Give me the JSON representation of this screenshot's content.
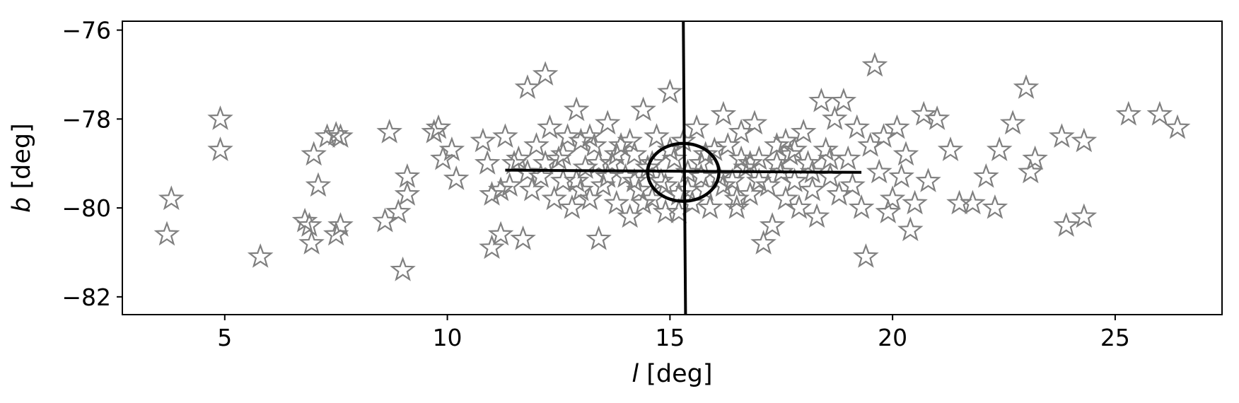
{
  "chart_data": {
    "type": "scatter",
    "title": "",
    "xlabel_symbol": "l",
    "xlabel_unit": " [deg]",
    "ylabel_symbol": "b",
    "ylabel_unit": " [deg]",
    "xlim": [
      2.7,
      27.4
    ],
    "ylim": [
      -82.4,
      -75.8
    ],
    "xticks": [
      5,
      10,
      15,
      20,
      25
    ],
    "yticks": [
      -76,
      -78,
      -80,
      -82
    ],
    "grid": false,
    "legend": "none",
    "marker": "star-outline",
    "marker_color": "#808080",
    "overlay_color": "#000000",
    "points": [
      [
        3.7,
        -80.6
      ],
      [
        3.8,
        -79.8
      ],
      [
        4.9,
        -78.0
      ],
      [
        4.9,
        -78.7
      ],
      [
        5.8,
        -81.1
      ],
      [
        6.8,
        -80.3
      ],
      [
        6.9,
        -80.4
      ],
      [
        6.95,
        -80.8
      ],
      [
        7.0,
        -78.8
      ],
      [
        7.1,
        -79.5
      ],
      [
        7.3,
        -78.4
      ],
      [
        7.5,
        -78.35
      ],
      [
        7.5,
        -80.6
      ],
      [
        7.6,
        -80.4
      ],
      [
        7.6,
        -78.4
      ],
      [
        8.6,
        -80.3
      ],
      [
        8.7,
        -78.3
      ],
      [
        8.9,
        -80.1
      ],
      [
        9.0,
        -81.4
      ],
      [
        9.1,
        -79.3
      ],
      [
        9.1,
        -79.7
      ],
      [
        9.7,
        -78.3
      ],
      [
        9.8,
        -78.2
      ],
      [
        9.9,
        -78.9
      ],
      [
        10.1,
        -78.7
      ],
      [
        10.2,
        -79.35
      ],
      [
        10.8,
        -78.5
      ],
      [
        10.9,
        -79.0
      ],
      [
        11.0,
        -79.7
      ],
      [
        11.0,
        -80.9
      ],
      [
        11.2,
        -79.6
      ],
      [
        11.2,
        -80.6
      ],
      [
        11.3,
        -78.4
      ],
      [
        11.5,
        -79.0
      ],
      [
        11.6,
        -78.9
      ],
      [
        11.7,
        -80.7
      ],
      [
        11.8,
        -77.3
      ],
      [
        11.9,
        -79.6
      ],
      [
        12.0,
        -78.6
      ],
      [
        12.1,
        -79.3
      ],
      [
        12.2,
        -77.0
      ],
      [
        12.3,
        -78.2
      ],
      [
        12.4,
        -79.8
      ],
      [
        12.5,
        -78.9
      ],
      [
        12.6,
        -79.4
      ],
      [
        12.7,
        -78.4
      ],
      [
        12.8,
        -80.0
      ],
      [
        12.9,
        -77.8
      ],
      [
        13.0,
        -78.5
      ],
      [
        13.1,
        -79.1
      ],
      [
        13.2,
        -79.8
      ],
      [
        13.3,
        -78.6
      ],
      [
        13.4,
        -80.7
      ],
      [
        13.5,
        -79.5
      ],
      [
        13.6,
        -78.1
      ],
      [
        13.7,
        -79.0
      ],
      [
        13.8,
        -79.9
      ],
      [
        13.9,
        -78.6
      ],
      [
        14.0,
        -79.3
      ],
      [
        14.1,
        -80.2
      ],
      [
        14.2,
        -78.8
      ],
      [
        14.3,
        -79.6
      ],
      [
        14.4,
        -77.8
      ],
      [
        14.5,
        -79.1
      ],
      [
        14.6,
        -79.8
      ],
      [
        14.7,
        -78.4
      ],
      [
        14.8,
        -79.4
      ],
      [
        14.9,
        -80.1
      ],
      [
        15.0,
        -77.4
      ],
      [
        15.1,
        -78.9
      ],
      [
        15.2,
        -79.7
      ],
      [
        15.3,
        -78.5
      ],
      [
        15.4,
        -79.2
      ],
      [
        15.5,
        -79.9
      ],
      [
        15.6,
        -78.2
      ],
      [
        15.7,
        -79.0
      ],
      [
        15.8,
        -79.6
      ],
      [
        15.9,
        -80.0
      ],
      [
        16.0,
        -78.7
      ],
      [
        16.1,
        -79.3
      ],
      [
        16.2,
        -77.9
      ],
      [
        16.3,
        -78.6
      ],
      [
        16.4,
        -79.4
      ],
      [
        16.5,
        -80.0
      ],
      [
        16.6,
        -78.3
      ],
      [
        16.7,
        -79.1
      ],
      [
        16.8,
        -79.7
      ],
      [
        16.9,
        -78.1
      ],
      [
        17.0,
        -78.9
      ],
      [
        17.1,
        -80.8
      ],
      [
        17.2,
        -79.5
      ],
      [
        17.3,
        -80.4
      ],
      [
        17.4,
        -78.6
      ],
      [
        17.5,
        -79.2
      ],
      [
        17.6,
        -79.8
      ],
      [
        17.7,
        -78.8
      ],
      [
        17.8,
        -79.4
      ],
      [
        17.9,
        -80.0
      ],
      [
        18.0,
        -78.3
      ],
      [
        18.1,
        -79.0
      ],
      [
        18.2,
        -79.6
      ],
      [
        18.3,
        -80.2
      ],
      [
        18.4,
        -77.6
      ],
      [
        18.5,
        -78.7
      ],
      [
        18.6,
        -79.3
      ],
      [
        18.7,
        -78.0
      ],
      [
        18.8,
        -79.7
      ],
      [
        18.9,
        -77.6
      ],
      [
        19.0,
        -78.9
      ],
      [
        19.1,
        -79.5
      ],
      [
        19.2,
        -78.2
      ],
      [
        19.3,
        -80.0
      ],
      [
        19.4,
        -81.1
      ],
      [
        19.5,
        -78.6
      ],
      [
        19.6,
        -76.8
      ],
      [
        19.7,
        -79.2
      ],
      [
        19.8,
        -78.4
      ],
      [
        19.9,
        -80.1
      ],
      [
        20.0,
        -79.8
      ],
      [
        20.1,
        -78.2
      ],
      [
        20.2,
        -79.3
      ],
      [
        20.3,
        -78.8
      ],
      [
        20.4,
        -80.5
      ],
      [
        20.5,
        -79.9
      ],
      [
        20.7,
        -77.9
      ],
      [
        20.8,
        -79.4
      ],
      [
        21.0,
        -78.0
      ],
      [
        21.3,
        -78.7
      ],
      [
        21.5,
        -79.9
      ],
      [
        21.8,
        -79.9
      ],
      [
        22.1,
        -79.3
      ],
      [
        22.3,
        -80.0
      ],
      [
        22.4,
        -78.7
      ],
      [
        22.7,
        -78.1
      ],
      [
        23.0,
        -77.3
      ],
      [
        23.1,
        -79.2
      ],
      [
        23.2,
        -78.9
      ],
      [
        23.8,
        -78.4
      ],
      [
        23.9,
        -80.4
      ],
      [
        24.3,
        -78.5
      ],
      [
        24.3,
        -80.2
      ],
      [
        25.3,
        -77.9
      ],
      [
        26.0,
        -77.9
      ],
      [
        26.4,
        -78.2
      ],
      [
        11.4,
        -79.5
      ],
      [
        11.8,
        -79.2
      ],
      [
        12.2,
        -79.0
      ],
      [
        12.6,
        -78.8
      ],
      [
        13.0,
        -79.6
      ],
      [
        13.4,
        -79.0
      ],
      [
        13.8,
        -78.8
      ],
      [
        14.2,
        -79.4
      ],
      [
        14.6,
        -79.0
      ],
      [
        15.0,
        -78.7
      ],
      [
        15.4,
        -79.6
      ],
      [
        15.8,
        -78.8
      ],
      [
        16.2,
        -79.5
      ],
      [
        16.6,
        -78.9
      ],
      [
        17.0,
        -79.4
      ],
      [
        17.4,
        -79.0
      ],
      [
        17.8,
        -78.7
      ],
      [
        18.2,
        -79.2
      ],
      [
        18.6,
        -78.9
      ],
      [
        14.1,
        -78.5
      ],
      [
        14.9,
        -79.5
      ],
      [
        15.7,
        -79.3
      ],
      [
        16.5,
        -79.8
      ],
      [
        13.6,
        -79.3
      ],
      [
        12.9,
        -79.4
      ],
      [
        13.2,
        -78.4
      ],
      [
        14.4,
        -79.9
      ],
      [
        15.2,
        -80.1
      ],
      [
        16.8,
        -79.0
      ],
      [
        17.6,
        -78.5
      ]
    ],
    "vertical_line": {
      "x": [
        15.3,
        15.35
      ],
      "y": [
        -75.8,
        -82.4
      ]
    },
    "horizontal_line": {
      "x": [
        11.3,
        19.3
      ],
      "y": [
        -79.15,
        -79.2
      ]
    },
    "ellipse": {
      "cx": 15.3,
      "cy": -79.2,
      "rx": 0.8,
      "ry": 0.65
    }
  }
}
